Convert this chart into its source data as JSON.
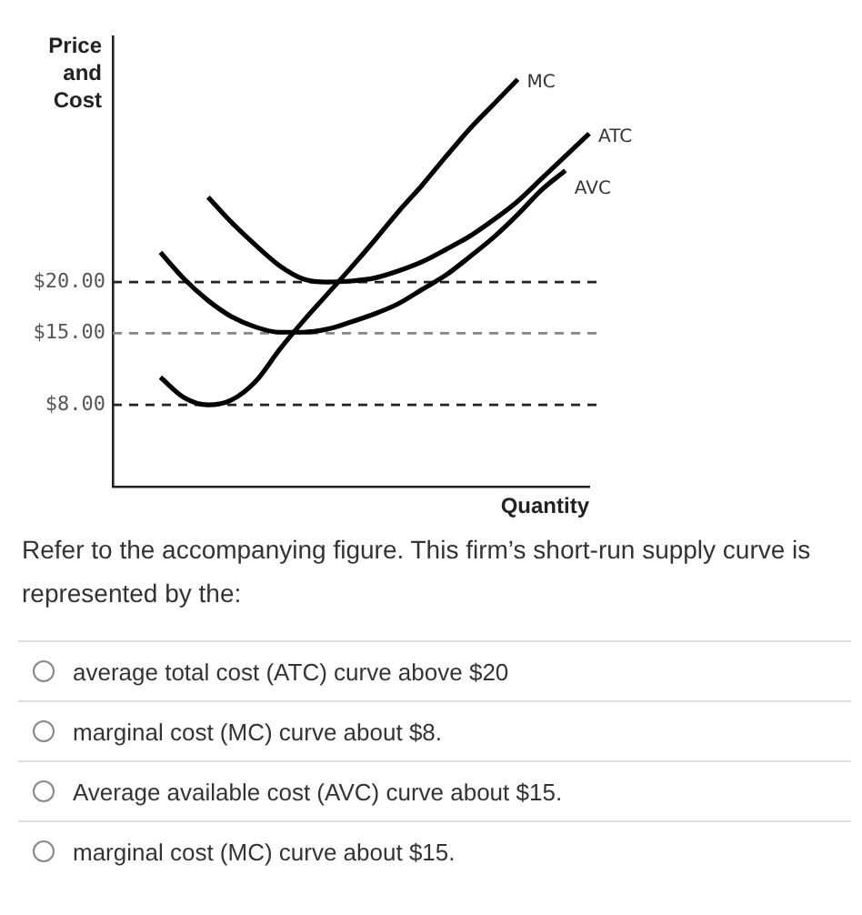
{
  "chart_data": {
    "type": "line",
    "ylabel": "Price\nand\nCost",
    "xlabel": "Quantity",
    "categories": [
      null,
      null,
      null,
      null,
      null,
      null,
      null,
      null,
      null,
      null,
      null,
      null,
      null,
      null,
      null,
      null,
      null,
      null,
      null,
      null,
      null
    ],
    "series": [
      {
        "name": "MC",
        "color": "#000000",
        "values": [
          null,
          null,
          10.7,
          8.7,
          8,
          8.5,
          10.3,
          13.4,
          16.2,
          18.8,
          21.4,
          24.1,
          26.9,
          29.5,
          32.3,
          35,
          37.4,
          39.8,
          null,
          null,
          null
        ]
      },
      {
        "name": "ATC",
        "color": "#000000",
        "values": [
          null,
          null,
          null,
          null,
          28.3,
          25.8,
          23.6,
          21.6,
          20.3,
          20,
          20.1,
          20.4,
          21.1,
          22,
          23.2,
          24.5,
          26.1,
          27.9,
          30.1,
          32.3,
          34.5
        ]
      },
      {
        "name": "AVC",
        "color": "#000000",
        "values": [
          null,
          null,
          22.9,
          20.3,
          18.2,
          16.6,
          15.6,
          15.1,
          15.1,
          15.4,
          16.1,
          16.9,
          17.9,
          19.3,
          20.7,
          22.5,
          24.4,
          26.6,
          29,
          30.9,
          null
        ]
      }
    ],
    "ylim": [
      0,
      44
    ],
    "yticks": [
      {
        "value": 8,
        "label": "$8.00"
      },
      {
        "value": 15,
        "label": "$15.00"
      },
      {
        "value": 20,
        "label": "$20.00"
      }
    ],
    "ref_lines": [
      {
        "axis": "y",
        "value": 20,
        "label": null,
        "color": "#222222",
        "line_style": "dashed"
      },
      {
        "axis": "y",
        "value": 15,
        "label": null,
        "color": "#888888",
        "line_style": "dashed"
      },
      {
        "axis": "y",
        "value": 8,
        "label": null,
        "color": "#222222",
        "line_style": "dashed"
      }
    ],
    "grid": false,
    "legend": false,
    "tick_labels": "y",
    "marker": "none",
    "line_style": "solid",
    "annotations": [
      "Refer to the accompanying figure. This firm’s short-run supply curve is represented by the:",
      "average total cost (ATC) curve above $20",
      "marginal cost (MC) curve about $8.",
      "Average available cost (AVC) curve about $15.",
      "marginal cost (MC) curve about $15."
    ]
  }
}
